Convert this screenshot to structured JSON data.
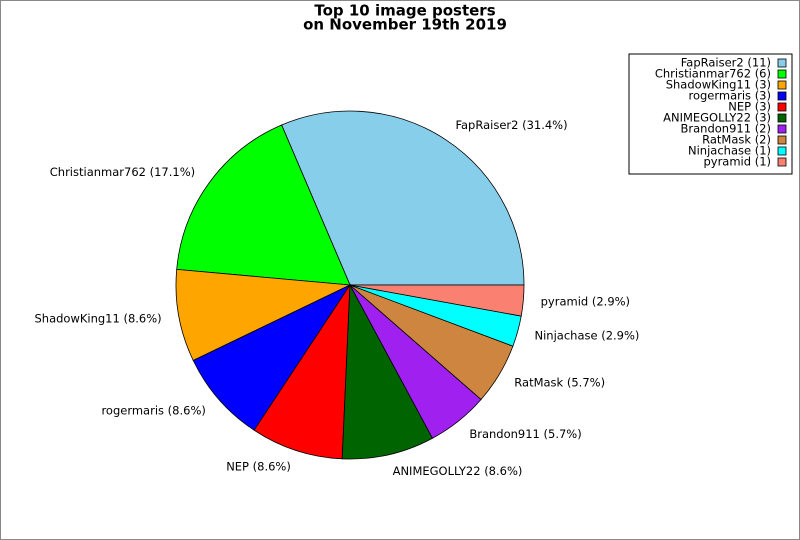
{
  "chart_data": {
    "type": "pie",
    "title": [
      "Top 10 image posters",
      "on November 19th 2019"
    ],
    "categories": [
      "FapRaiser2",
      "Christianmar762",
      "ShadowKing11",
      "rogermaris",
      "NEP",
      "ANIMEGOLLY22",
      "Brandon911",
      "RatMask",
      "Ninjachase",
      "pyramid"
    ],
    "values": [
      11,
      6,
      3,
      3,
      3,
      3,
      2,
      2,
      1,
      1
    ],
    "legend_labels": [
      "FapRaiser2 (11)",
      "Christianmar762 (6)",
      "ShadowKing11 (3)",
      "rogermaris (3)",
      "NEP (3)",
      "ANIMEGOLLY22 (3)",
      "Brandon911 (2)",
      "RatMask (2)",
      "Ninjachase (1)",
      "pyramid (1)"
    ],
    "slice_labels": [
      "FapRaiser2 (31.4%)",
      "Christianmar762 (17.1%)",
      "ShadowKing11 (8.6%)",
      "rogermaris (8.6%)",
      "NEP (8.6%)",
      "ANIMEGOLLY22 (8.6%)",
      "Brandon911 (5.7%)",
      "RatMask (5.7%)",
      "Ninjachase (2.9%)",
      "pyramid (2.9%)"
    ],
    "colors": [
      "#87ceeb",
      "#00ff00",
      "#ffa500",
      "#0000ff",
      "#ff0000",
      "#006400",
      "#a020f0",
      "#cd853f",
      "#00ffff",
      "#fa8072"
    ],
    "legend": "upper right"
  }
}
